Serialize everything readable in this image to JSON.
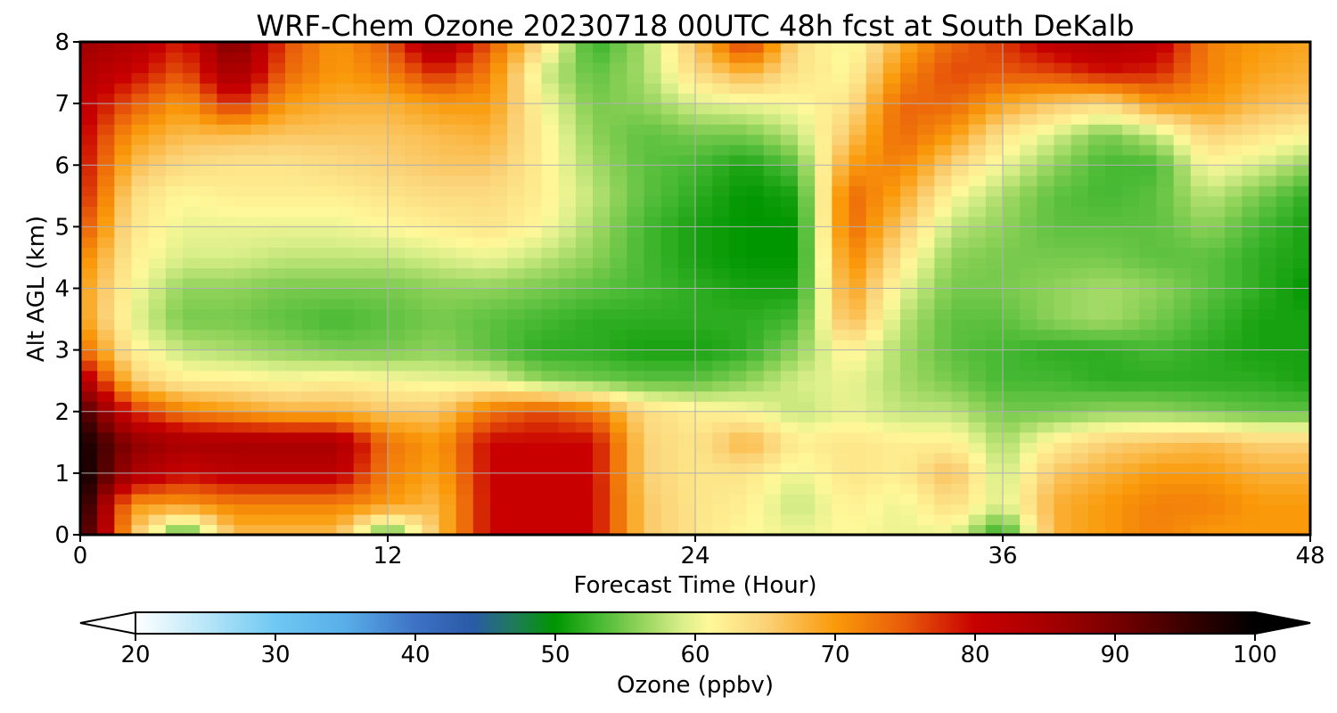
{
  "chart_data": {
    "type": "heatmap",
    "title": "WRF-Chem Ozone  20230718 00UTC 48h fcst at South DeKalb",
    "xlabel": "Forecast Time (Hour)",
    "ylabel": "Alt AGL (km)",
    "xlim": [
      0,
      48
    ],
    "ylim": [
      0,
      8
    ],
    "x_ticks": [
      0,
      12,
      24,
      36,
      48
    ],
    "y_ticks": [
      0,
      1,
      2,
      3,
      4,
      5,
      6,
      7,
      8
    ],
    "grid": true,
    "colorbar": {
      "label": "Ozone  (ppbv)",
      "orientation": "horizontal",
      "placement": "bottom",
      "range": [
        20,
        100
      ],
      "ticks": [
        20,
        30,
        40,
        50,
        60,
        70,
        80,
        90,
        100
      ],
      "extend": "both",
      "color_stops": [
        {
          "value": 20,
          "color": "#ffffff"
        },
        {
          "value": 25,
          "color": "#b8e6f8"
        },
        {
          "value": 30,
          "color": "#6ec8f2"
        },
        {
          "value": 35,
          "color": "#58aee8"
        },
        {
          "value": 40,
          "color": "#3e72c4"
        },
        {
          "value": 44,
          "color": "#2a5aa8"
        },
        {
          "value": 47,
          "color": "#1f7a5a"
        },
        {
          "value": 50,
          "color": "#009600"
        },
        {
          "value": 53,
          "color": "#45b832"
        },
        {
          "value": 56,
          "color": "#8fd25a"
        },
        {
          "value": 59,
          "color": "#d8ee88"
        },
        {
          "value": 61,
          "color": "#fff89a"
        },
        {
          "value": 65,
          "color": "#fbd278"
        },
        {
          "value": 70,
          "color": "#fa9a0a"
        },
        {
          "value": 75,
          "color": "#e85a0a"
        },
        {
          "value": 80,
          "color": "#c80000"
        },
        {
          "value": 85,
          "color": "#a80000"
        },
        {
          "value": 90,
          "color": "#780000"
        },
        {
          "value": 95,
          "color": "#3a0000"
        },
        {
          "value": 100,
          "color": "#000000"
        }
      ]
    },
    "grid_x_hours": [
      0,
      2,
      4,
      6,
      8,
      10,
      12,
      14,
      16,
      18,
      20,
      22,
      24,
      26,
      28,
      30,
      32,
      34,
      36,
      38,
      40,
      42,
      44,
      46,
      48
    ],
    "grid_y_km": [
      0,
      0.5,
      1,
      1.5,
      2,
      2.5,
      3,
      3.5,
      4,
      4.5,
      5,
      5.5,
      6,
      6.5,
      7,
      7.5,
      8
    ],
    "values_ppbv": [
      [
        97,
        67,
        51,
        67,
        67,
        67,
        52,
        67,
        80,
        80,
        80,
        66,
        63,
        61,
        60,
        61,
        60,
        60,
        51,
        68,
        70,
        72,
        70,
        70,
        70
      ],
      [
        99,
        70,
        70,
        72,
        72,
        72,
        70,
        67,
        80,
        80,
        80,
        66,
        63,
        62,
        58,
        62,
        60,
        64,
        59,
        68,
        70,
        72,
        72,
        70,
        70
      ],
      [
        100,
        85,
        80,
        82,
        82,
        82,
        72,
        69,
        80,
        80,
        80,
        65,
        63,
        63,
        60,
        63,
        62,
        67,
        58,
        66,
        68,
        70,
        70,
        68,
        68
      ],
      [
        99,
        88,
        85,
        85,
        85,
        85,
        73,
        70,
        80,
        80,
        80,
        65,
        63,
        68,
        62,
        63,
        62,
        62,
        57,
        62,
        65,
        66,
        67,
        65,
        65
      ],
      [
        95,
        78,
        72,
        70,
        68,
        68,
        66,
        66,
        73,
        76,
        73,
        64,
        62,
        61,
        58,
        60,
        58,
        58,
        55,
        55,
        56,
        56,
        55,
        54,
        54
      ],
      [
        85,
        66,
        62,
        62,
        61,
        62,
        61,
        60,
        60,
        56,
        55,
        54,
        54,
        56,
        59,
        60,
        57,
        55,
        53,
        53,
        52,
        52,
        52,
        52,
        51
      ],
      [
        74,
        62,
        58,
        57,
        56,
        55,
        55,
        56,
        54,
        52,
        52,
        51,
        51,
        52,
        56,
        62,
        57,
        54,
        53,
        52,
        52,
        53,
        52,
        51,
        51
      ],
      [
        70,
        60,
        55,
        55,
        54,
        53,
        54,
        55,
        54,
        53,
        52,
        52,
        52,
        52,
        53,
        68,
        58,
        54,
        54,
        56,
        57,
        55,
        53,
        51,
        51
      ],
      [
        70,
        61,
        56,
        56,
        55,
        55,
        55,
        56,
        56,
        55,
        54,
        53,
        52,
        51,
        51,
        70,
        60,
        55,
        55,
        56,
        57,
        56,
        54,
        52,
        50
      ],
      [
        72,
        62,
        59,
        59,
        58,
        58,
        58,
        59,
        60,
        58,
        56,
        53,
        51,
        50,
        50,
        72,
        63,
        56,
        55,
        55,
        55,
        54,
        54,
        52,
        51
      ],
      [
        76,
        63,
        60,
        60,
        60,
        60,
        61,
        62,
        63,
        61,
        57,
        53,
        51,
        50,
        50,
        74,
        66,
        58,
        56,
        54,
        54,
        54,
        56,
        53,
        51
      ],
      [
        79,
        64,
        61,
        62,
        62,
        62,
        63,
        64,
        64,
        62,
        58,
        54,
        52,
        50,
        51,
        74,
        69,
        61,
        57,
        54,
        53,
        54,
        58,
        55,
        52
      ],
      [
        80,
        67,
        64,
        63,
        63,
        64,
        65,
        66,
        66,
        62,
        57,
        54,
        53,
        51,
        54,
        70,
        72,
        65,
        60,
        56,
        53,
        53,
        61,
        59,
        56
      ],
      [
        81,
        70,
        67,
        67,
        66,
        66,
        66,
        67,
        68,
        62,
        56,
        54,
        55,
        55,
        58,
        66,
        74,
        70,
        63,
        59,
        55,
        58,
        65,
        63,
        61
      ],
      [
        82,
        75,
        70,
        78,
        70,
        68,
        68,
        70,
        70,
        61,
        55,
        56,
        59,
        60,
        61,
        63,
        74,
        74,
        69,
        66,
        64,
        70,
        70,
        67,
        66
      ],
      [
        84,
        80,
        75,
        86,
        74,
        70,
        72,
        78,
        72,
        59,
        54,
        57,
        64,
        68,
        63,
        61,
        71,
        76,
        75,
        76,
        79,
        78,
        72,
        69,
        68
      ],
      [
        86,
        84,
        78,
        90,
        76,
        70,
        75,
        86,
        75,
        64,
        52,
        57,
        66,
        78,
        64,
        60,
        68,
        74,
        77,
        82,
        84,
        82,
        72,
        70,
        69
      ]
    ]
  }
}
